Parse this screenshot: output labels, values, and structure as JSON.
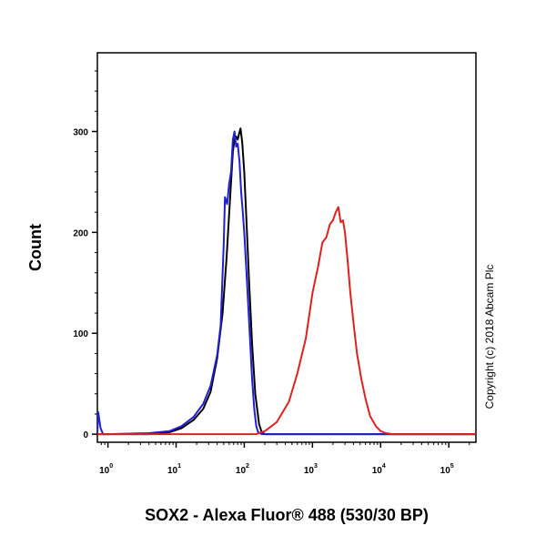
{
  "chart_data": {
    "type": "line",
    "xlabel": "SOX2 - Alexa Fluor® 488 (530/30 BP)",
    "ylabel": "Count",
    "x_scale": "log",
    "xlim": [
      0.7,
      250000
    ],
    "ylim": [
      -8,
      378
    ],
    "y_ticks": [
      0,
      100,
      200,
      300
    ],
    "x_ticks": [
      {
        "value": 1,
        "base": "10",
        "exp": "0"
      },
      {
        "value": 10,
        "base": "10",
        "exp": "1"
      },
      {
        "value": 100,
        "base": "10",
        "exp": "2"
      },
      {
        "value": 1000,
        "base": "10",
        "exp": "3"
      },
      {
        "value": 10000,
        "base": "10",
        "exp": "4"
      },
      {
        "value": 100000,
        "base": "10",
        "exp": "5"
      }
    ],
    "grid": false,
    "annotation": "Copyright (c) 2018 Abcam Plc",
    "series": [
      {
        "color": "#000000",
        "x": [
          0.7,
          4,
          8,
          12,
          18,
          25,
          32,
          40,
          48,
          55,
          62,
          68,
          72,
          76,
          80,
          84,
          88,
          93,
          100,
          108,
          118,
          130,
          145,
          165,
          180,
          200,
          250000
        ],
        "y": [
          0,
          0,
          2,
          6,
          14,
          25,
          42,
          75,
          120,
          175,
          235,
          280,
          292,
          295,
          292,
          298,
          303,
          290,
          260,
          210,
          150,
          90,
          40,
          10,
          2,
          0,
          0
        ]
      },
      {
        "color": "#1f1fd6",
        "x": [
          0.7,
          0.72,
          0.78,
          0.85,
          1,
          4,
          8,
          12,
          18,
          25,
          32,
          40,
          45,
          50,
          52,
          56,
          60,
          64,
          68,
          72,
          76,
          80,
          85,
          90,
          95,
          100,
          110,
          120,
          130,
          140,
          150,
          160,
          180,
          250000
        ],
        "y": [
          0,
          22,
          6,
          0,
          0,
          1,
          3,
          8,
          17,
          30,
          48,
          78,
          108,
          190,
          235,
          228,
          248,
          260,
          292,
          300,
          285,
          288,
          270,
          240,
          220,
          200,
          150,
          100,
          55,
          25,
          8,
          2,
          0,
          0
        ]
      },
      {
        "color": "#e02020",
        "x": [
          0.7,
          150,
          200,
          300,
          450,
          600,
          800,
          1000,
          1200,
          1400,
          1600,
          1800,
          2000,
          2200,
          2400,
          2600,
          2800,
          3000,
          3300,
          3600,
          4000,
          4500,
          5200,
          6000,
          7000,
          8500,
          10000,
          12000,
          15000,
          250000
        ],
        "y": [
          0,
          0,
          3,
          12,
          32,
          60,
          95,
          140,
          165,
          190,
          195,
          208,
          212,
          220,
          225,
          210,
          212,
          200,
          170,
          140,
          110,
          80,
          55,
          35,
          18,
          8,
          3,
          1,
          0,
          0
        ]
      }
    ]
  }
}
